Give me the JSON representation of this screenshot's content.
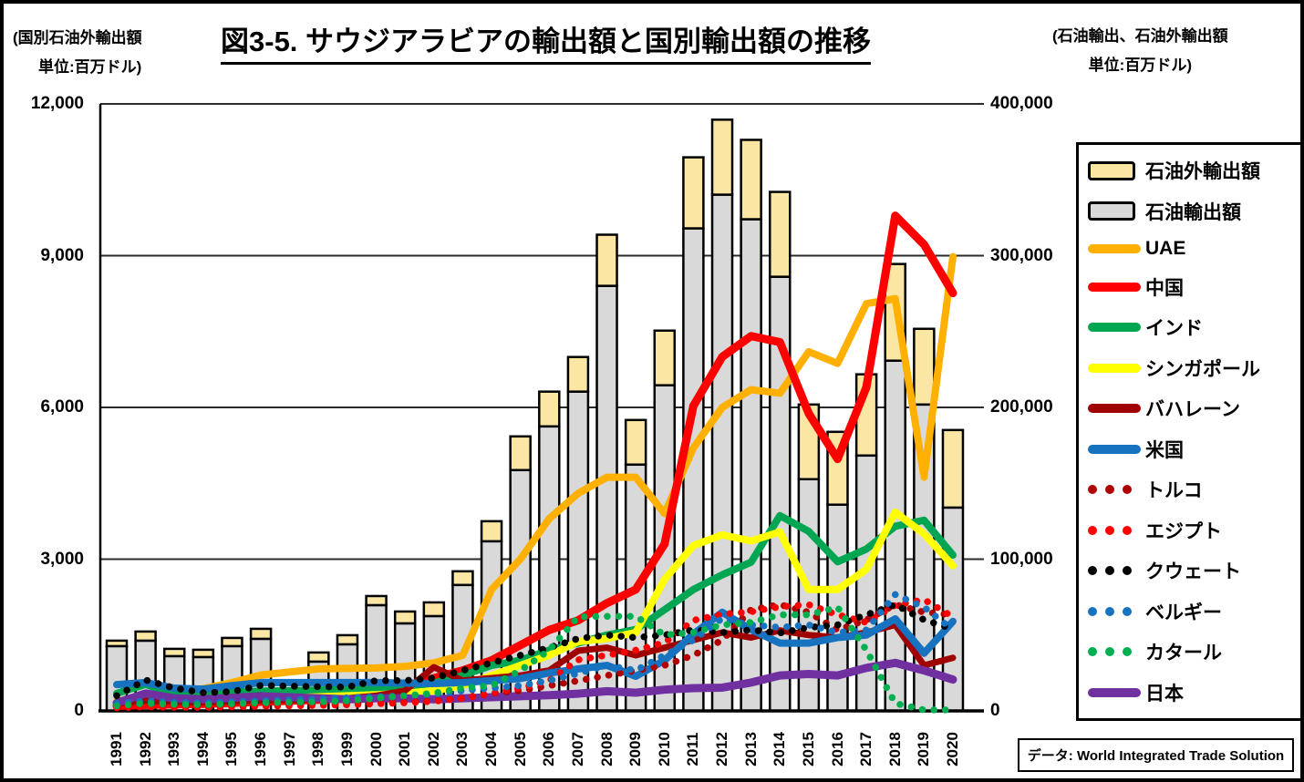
{
  "title": "図3-5. サウジアラビアの輸出額と国別輸出額の推移",
  "left_axis_note": {
    "line1": "(国別石油外輸出額",
    "line2": "単位:百万ドル)"
  },
  "right_axis_note": {
    "line1": "(石油輸出、石油外輸出額",
    "line2": "単位:百万ドル)"
  },
  "source": "データ: World Integrated Trade Solution",
  "chart_data": {
    "type": "combo (stacked bar + line)",
    "x": [
      1991,
      1992,
      1993,
      1994,
      1995,
      1996,
      1997,
      1998,
      1999,
      2000,
      2001,
      2002,
      2003,
      2004,
      2005,
      2006,
      2007,
      2008,
      2009,
      2010,
      2011,
      2012,
      2013,
      2014,
      2015,
      2016,
      2017,
      2018,
      2019,
      2020
    ],
    "left_axis": {
      "label": "国別石油外輸出額 (百万ドル)",
      "min": 0,
      "max": 12000,
      "ticks": [
        {
          "v": 12000,
          "t": "12,000"
        },
        {
          "v": 9000,
          "t": "9,000"
        },
        {
          "v": 6000,
          "t": "6,000"
        },
        {
          "v": 3000,
          "t": "3,000"
        },
        {
          "v": 0,
          "t": "0"
        }
      ]
    },
    "right_axis": {
      "label": "石油輸出、石油外輸出額 (百万ドル)",
      "min": 0,
      "max": 400000,
      "ticks": [
        {
          "v": 400000,
          "t": "400,000"
        },
        {
          "v": 300000,
          "t": "300,000"
        },
        {
          "v": 200000,
          "t": "200,000"
        },
        {
          "v": 100000,
          "t": "100,000"
        },
        {
          "v": 0,
          "t": "0"
        }
      ]
    },
    "grid": true,
    "legend_position": "right",
    "bars": {
      "axis": "right",
      "stack": [
        {
          "key": "oil",
          "label": "石油輸出額",
          "color": "#d9d9d9",
          "border": "#000000",
          "values": [
            42700,
            46300,
            36100,
            35500,
            42700,
            47500,
            null,
            32500,
            43900,
            69700,
            57700,
            62500,
            83000,
            111800,
            158700,
            187500,
            210400,
            280100,
            162300,
            214600,
            318000,
            340200,
            324000,
            286100,
            152700,
            135900,
            168300,
            230800,
            201900,
            134000
          ]
        },
        {
          "key": "non_oil",
          "label": "石油外輸出額",
          "color": "#fbe7a3",
          "border": "#000000",
          "values": [
            3600,
            6000,
            4800,
            4800,
            5400,
            6600,
            null,
            6000,
            6000,
            6000,
            7800,
            9000,
            9000,
            13200,
            22200,
            22900,
            22800,
            33700,
            29400,
            36000,
            46800,
            49400,
            52300,
            55900,
            49200,
            48000,
            53500,
            63700,
            49900,
            51100
          ]
        }
      ]
    },
    "series": [
      {
        "key": "uae",
        "label": "UAE",
        "color": "#ffb000",
        "style": "solid",
        "width": 8,
        "values": [
          130,
          270,
          330,
          440,
          560,
          710,
          770,
          830,
          840,
          850,
          880,
          950,
          1100,
          2400,
          3000,
          3800,
          4300,
          4620,
          4620,
          3900,
          5200,
          6000,
          6350,
          6280,
          7100,
          6870,
          8050,
          8150,
          4620,
          8980
        ]
      },
      {
        "key": "china",
        "label": "中国",
        "color": "#fe0000",
        "style": "solid",
        "width": 9,
        "values": [
          100,
          120,
          130,
          140,
          160,
          180,
          200,
          220,
          260,
          350,
          420,
          650,
          800,
          1000,
          1300,
          1600,
          1790,
          2130,
          2400,
          3300,
          6030,
          7000,
          7410,
          7290,
          5880,
          4980,
          6400,
          9790,
          9220,
          8260
        ]
      },
      {
        "key": "india",
        "label": "インド",
        "color": "#00a651",
        "style": "solid",
        "width": 8,
        "values": [
          345,
          525,
          330,
          330,
          370,
          390,
          400,
          410,
          430,
          450,
          480,
          550,
          700,
          900,
          1000,
          1200,
          1340,
          1500,
          1610,
          2000,
          2400,
          2690,
          2940,
          3860,
          3550,
          2950,
          3200,
          3650,
          3770,
          3080
        ]
      },
      {
        "key": "singapore",
        "label": "シンガポール",
        "color": "#ffff00",
        "style": "solid",
        "width": 8,
        "values": [
          200,
          250,
          220,
          210,
          230,
          250,
          260,
          280,
          300,
          320,
          350,
          400,
          500,
          700,
          900,
          1100,
          1370,
          1430,
          1550,
          2600,
          3270,
          3480,
          3360,
          3540,
          2400,
          2400,
          2800,
          3930,
          3500,
          2870
        ]
      },
      {
        "key": "bahrain",
        "label": "バハレーン",
        "color": "#a00000",
        "style": "solid",
        "width": 7,
        "values": [
          150,
          200,
          180,
          170,
          190,
          210,
          220,
          230,
          250,
          300,
          400,
          865,
          600,
          650,
          700,
          800,
          1190,
          1250,
          1100,
          1250,
          1400,
          1550,
          1450,
          1590,
          1500,
          1450,
          1550,
          1700,
          900,
          1050
        ]
      },
      {
        "key": "usa",
        "label": "米国",
        "color": "#1772c0",
        "style": "solid",
        "width": 8,
        "values": [
          520,
          560,
          450,
          430,
          500,
          560,
          560,
          560,
          560,
          560,
          550,
          540,
          560,
          600,
          640,
          750,
          830,
          900,
          685,
          1000,
          1520,
          1950,
          1610,
          1340,
          1340,
          1450,
          1500,
          1820,
          1140,
          1770
        ]
      },
      {
        "key": "japan",
        "label": "日本",
        "color": "#7030a0",
        "style": "solid",
        "width": 9,
        "values": [
          160,
          345,
          250,
          230,
          260,
          290,
          270,
          250,
          230,
          250,
          250,
          230,
          250,
          270,
          290,
          310,
          340,
          390,
          360,
          420,
          450,
          460,
          560,
          700,
          730,
          700,
          850,
          950,
          800,
          620
        ]
      },
      {
        "key": "turkey",
        "label": "トルコ",
        "color": "#b00000",
        "style": "dots",
        "width": 7,
        "values": [
          80,
          100,
          90,
          90,
          100,
          110,
          120,
          130,
          140,
          150,
          170,
          200,
          250,
          350,
          400,
          500,
          595,
          700,
          800,
          900,
          1100,
          1400,
          2000,
          2100,
          1950,
          1600,
          1800,
          2100,
          1950,
          1900
        ]
      },
      {
        "key": "egypt",
        "label": "エジプト",
        "color": "#ff0000",
        "style": "dots",
        "width": 7,
        "values": [
          60,
          80,
          70,
          70,
          80,
          90,
          100,
          110,
          120,
          140,
          160,
          190,
          250,
          350,
          450,
          600,
          1010,
          1100,
          1200,
          1350,
          1790,
          1910,
          1960,
          2060,
          2100,
          1900,
          1750,
          2090,
          2200,
          1860
        ]
      },
      {
        "key": "kuwait",
        "label": "クウェート",
        "color": "#000000",
        "style": "dots",
        "width": 7,
        "values": [
          300,
          610,
          450,
          360,
          380,
          505,
          490,
          480,
          470,
          600,
          600,
          650,
          800,
          950,
          1100,
          1250,
          1430,
          1500,
          1450,
          1500,
          1600,
          1550,
          1600,
          1540,
          1650,
          1700,
          1900,
          2100,
          1800,
          1620
        ]
      },
      {
        "key": "belgium",
        "label": "ベルギー",
        "color": "#1772c0",
        "style": "dots",
        "width": 7,
        "values": [
          150,
          200,
          170,
          160,
          180,
          200,
          220,
          240,
          260,
          280,
          300,
          330,
          400,
          450,
          500,
          600,
          740,
          900,
          800,
          1100,
          1400,
          1830,
          1700,
          1650,
          1700,
          1550,
          1600,
          2300,
          2050,
          1600
        ]
      },
      {
        "key": "qatar",
        "label": "カタール",
        "color": "#00b050",
        "style": "dots",
        "width": 7,
        "values": [
          100,
          150,
          130,
          120,
          140,
          160,
          170,
          180,
          200,
          250,
          300,
          350,
          450,
          500,
          800,
          1200,
          1860,
          1870,
          1870,
          1500,
          1550,
          1700,
          1750,
          1900,
          1900,
          2050,
          1200,
          150,
          20,
          20
        ]
      }
    ],
    "legend_order": [
      "bar:non_oil",
      "bar:oil",
      "uae",
      "china",
      "india",
      "singapore",
      "bahrain",
      "usa",
      "turkey",
      "egypt",
      "kuwait",
      "belgium",
      "qatar",
      "japan"
    ]
  }
}
